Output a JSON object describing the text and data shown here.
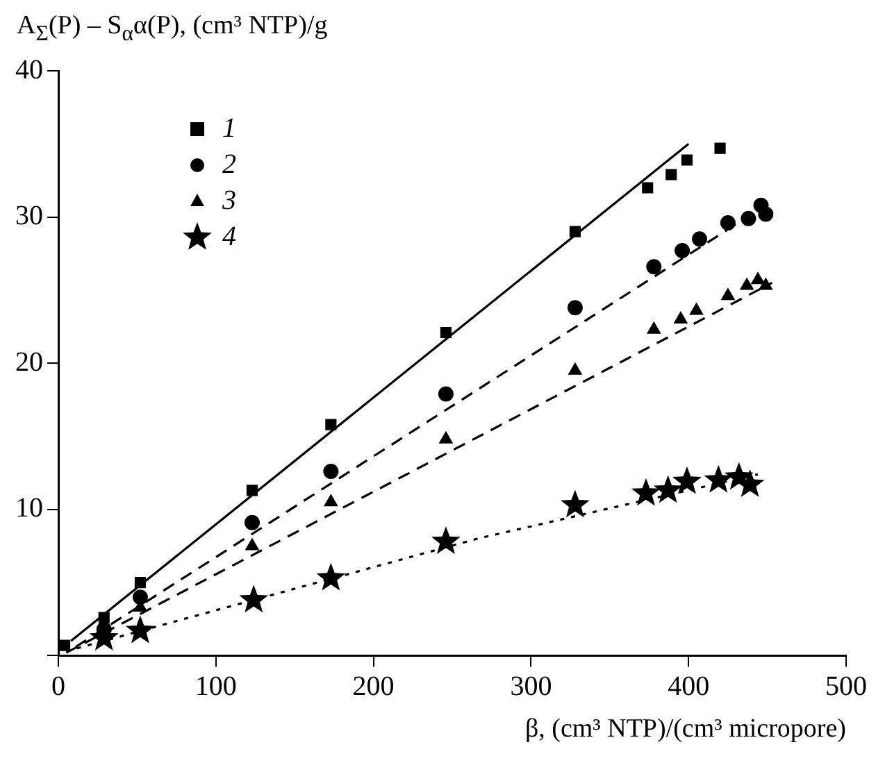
{
  "chart_data": {
    "type": "scatter",
    "ylabel": "A$_{Σ}$(P) – S$_{α}$α(P), (cm³ NTP)/g",
    "xlabel": "β, (cm³ NTP)/(cm³ micropore)",
    "xlim": [
      0,
      500
    ],
    "xticks": [
      0,
      100,
      200,
      300,
      400,
      500
    ],
    "ylim": [
      0,
      40
    ],
    "yticks": [
      {
        "value": 0,
        "label": null
      },
      10,
      20,
      30,
      40
    ],
    "grid": false,
    "legend": "top left",
    "series": [
      {
        "name": "1",
        "type": "scatter",
        "marker": "square",
        "color": "#000000",
        "x": [
          4,
          29,
          52,
          123,
          173,
          246,
          328,
          374,
          389,
          399,
          420
        ],
        "values": [
          0.7,
          2.6,
          5.0,
          11.3,
          15.8,
          22.1,
          29.0,
          32.0,
          32.9,
          33.9,
          34.7
        ]
      },
      {
        "name": "2",
        "type": "scatter",
        "marker": "circle",
        "color": "#000000",
        "x": [
          29,
          52,
          123,
          173,
          246,
          328,
          378,
          396,
          407,
          425,
          438,
          446,
          449
        ],
        "values": [
          1.8,
          4.0,
          9.1,
          12.6,
          17.9,
          23.8,
          26.6,
          27.7,
          28.5,
          29.6,
          29.9,
          30.8,
          30.2
        ]
      },
      {
        "name": "3",
        "type": "scatter",
        "marker": "triangle",
        "color": "#000000",
        "x": [
          52,
          123,
          173,
          246,
          328,
          378,
          395,
          405,
          425,
          437,
          444,
          449
        ],
        "values": [
          3.3,
          7.5,
          10.5,
          14.8,
          19.5,
          22.3,
          23.0,
          23.6,
          24.6,
          25.3,
          25.7,
          25.3
        ]
      },
      {
        "name": "4",
        "type": "scatter",
        "marker": "star",
        "color": "#000000",
        "x": [
          29,
          52,
          124,
          173,
          246,
          328,
          373,
          387,
          399,
          419,
          432,
          439
        ],
        "values": [
          1.2,
          1.7,
          3.8,
          5.3,
          7.8,
          10.3,
          11.1,
          11.3,
          11.9,
          12.0,
          12.2,
          11.7
        ]
      },
      {
        "type": "line",
        "line_style": "solid",
        "marker": "none",
        "color": "#000000",
        "x": [
          8,
          400
        ],
        "values": [
          1.0,
          35.0
        ]
      },
      {
        "type": "line",
        "line_style": "dashed",
        "marker": "none",
        "color": "#000000",
        "x": [
          11,
          446
        ],
        "values": [
          0.6,
          30.6
        ]
      },
      {
        "type": "line",
        "line_style": "dashed",
        "marker": "none",
        "color": "#000000",
        "x": [
          5,
          453
        ],
        "values": [
          0.2,
          25.5
        ]
      },
      {
        "type": "line",
        "line_style": "dotted",
        "marker": "none",
        "color": "#000000",
        "x": [
          5,
          266,
          444
        ],
        "values": [
          0.3,
          8.0,
          12.4
        ]
      }
    ]
  }
}
